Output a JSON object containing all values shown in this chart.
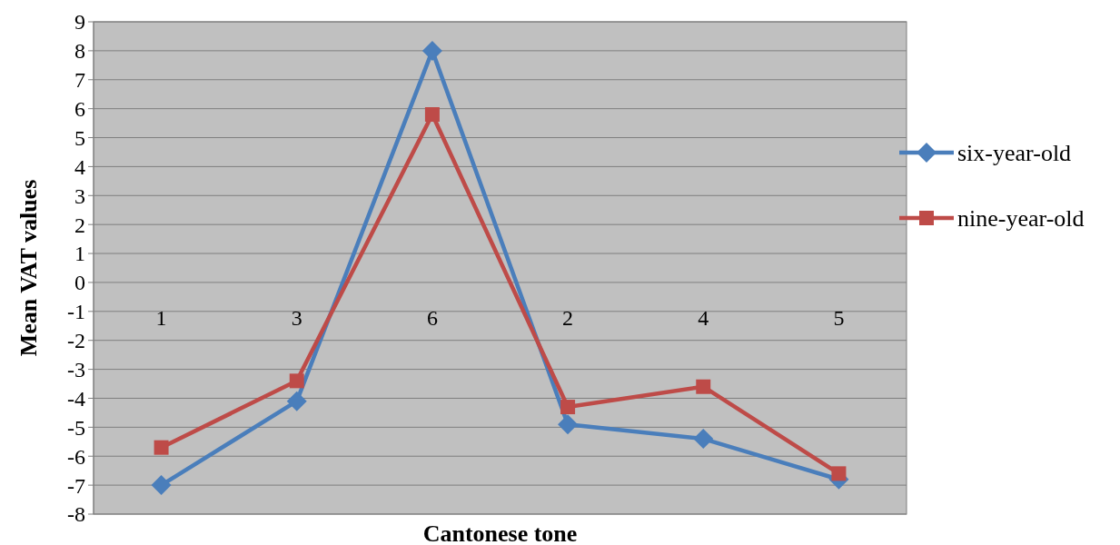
{
  "chart_data": {
    "type": "line",
    "xlabel": "Cantonese tone",
    "ylabel": "Mean VAT values",
    "categories": [
      "1",
      "3",
      "6",
      "2",
      "4",
      "5"
    ],
    "series": [
      {
        "name": "six-year-old",
        "color": "#4a7ebb",
        "marker": "diamond",
        "values": [
          -7.0,
          -4.1,
          8.0,
          -4.9,
          -5.4,
          -6.8
        ]
      },
      {
        "name": "nine-year-old",
        "color": "#be4b48",
        "marker": "square",
        "values": [
          -5.7,
          -3.4,
          5.8,
          -4.3,
          -3.6,
          -6.6
        ]
      }
    ],
    "ylim": [
      -8,
      9
    ],
    "yticks": [
      -8,
      -7,
      -6,
      -5,
      -4,
      -3,
      -2,
      -1,
      0,
      1,
      2,
      3,
      4,
      5,
      6,
      7,
      8,
      9
    ],
    "grid": "y",
    "legend": "right",
    "line_style": "solid"
  }
}
